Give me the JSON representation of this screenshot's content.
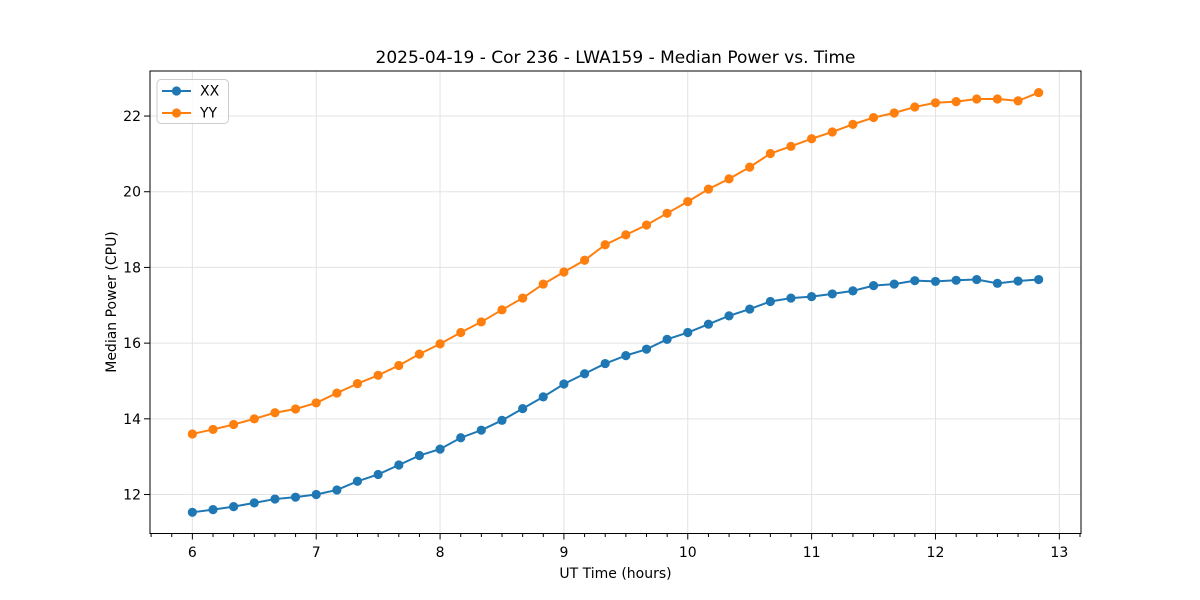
{
  "chart_data": {
    "type": "line",
    "title": "2025-04-19 - Cor 236 - LWA159 - Median Power vs. Time",
    "xlabel": "UT Time (hours)",
    "ylabel": "Median Power (CPU)",
    "xlim": [
      5.658,
      13.175
    ],
    "ylim": [
      10.97,
      23.19
    ],
    "xticks": [
      6,
      7,
      8,
      9,
      10,
      11,
      12,
      13
    ],
    "yticks": [
      12,
      14,
      16,
      18,
      20,
      22
    ],
    "x_minor_step": 0.16667,
    "grid": true,
    "grid_color": "#e3e3e3",
    "legend_position": "upper left",
    "x": [
      6.0,
      6.167,
      6.333,
      6.5,
      6.667,
      6.833,
      7.0,
      7.167,
      7.333,
      7.5,
      7.667,
      7.833,
      8.0,
      8.167,
      8.333,
      8.5,
      8.667,
      8.833,
      9.0,
      9.167,
      9.333,
      9.5,
      9.667,
      9.833,
      10.0,
      10.167,
      10.333,
      10.5,
      10.667,
      10.833,
      11.0,
      11.167,
      11.333,
      11.5,
      11.667,
      11.833,
      12.0,
      12.167,
      12.333,
      12.5,
      12.667,
      12.833
    ],
    "series": [
      {
        "name": "XX",
        "color": "#1f77b4",
        "values": [
          11.53,
          11.6,
          11.68,
          11.78,
          11.88,
          11.93,
          12.0,
          12.12,
          12.35,
          12.53,
          12.78,
          13.03,
          13.2,
          13.5,
          13.7,
          13.96,
          14.27,
          14.58,
          14.92,
          15.19,
          15.46,
          15.67,
          15.84,
          16.1,
          16.28,
          16.5,
          16.72,
          16.9,
          17.1,
          17.19,
          17.23,
          17.3,
          17.38,
          17.52,
          17.56,
          17.65,
          17.63,
          17.66,
          17.68,
          17.58,
          17.64,
          17.68
        ]
      },
      {
        "name": "YY",
        "color": "#ff7f0e",
        "values": [
          13.6,
          13.72,
          13.85,
          14.0,
          14.16,
          14.26,
          14.42,
          14.68,
          14.93,
          15.15,
          15.41,
          15.71,
          15.98,
          16.28,
          16.56,
          16.88,
          17.19,
          17.56,
          17.88,
          18.19,
          18.6,
          18.86,
          19.12,
          19.43,
          19.74,
          20.07,
          20.34,
          20.65,
          21.01,
          21.2,
          21.4,
          21.58,
          21.78,
          21.96,
          22.08,
          22.24,
          22.35,
          22.38,
          22.45,
          22.45,
          22.4,
          22.62
        ]
      }
    ]
  }
}
